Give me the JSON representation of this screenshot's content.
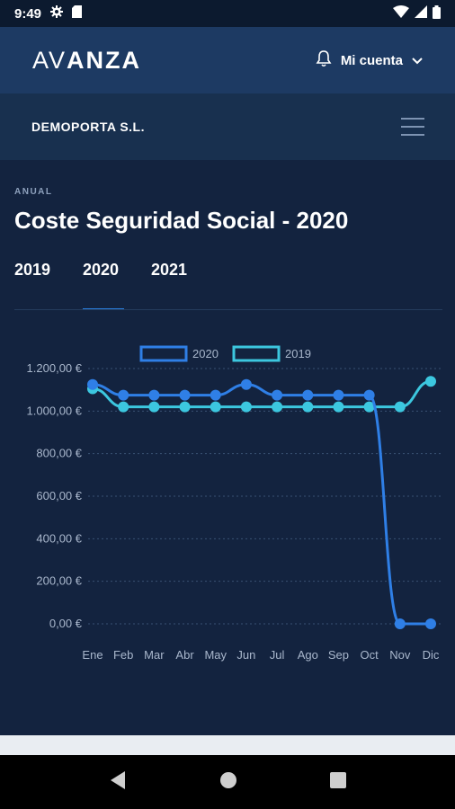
{
  "status": {
    "time": "9:49"
  },
  "header": {
    "logo_light": "AV",
    "logo_bold": "ANZA",
    "account_label": "Mi cuenta"
  },
  "company": {
    "name": "DEMOPORTA S.L."
  },
  "page": {
    "overline": "ANUAL",
    "title": "Coste Seguridad Social - 2020",
    "tabs": [
      {
        "label": "2019",
        "active": false
      },
      {
        "label": "2020",
        "active": true
      },
      {
        "label": "2021",
        "active": false
      }
    ]
  },
  "colors": {
    "series_2020": "#2f7fe6",
    "series_2019": "#3cc7df"
  },
  "chart_data": {
    "type": "line",
    "categories": [
      "Ene",
      "Feb",
      "Mar",
      "Abr",
      "May",
      "Jun",
      "Jul",
      "Ago",
      "Sep",
      "Oct",
      "Nov",
      "Dic"
    ],
    "yticks": [
      "0,00 €",
      "200,00 €",
      "400,00 €",
      "600,00 €",
      "800,00 €",
      "1.000,00 €",
      "1.200,00 €"
    ],
    "ylim": [
      0,
      1200
    ],
    "grid": true,
    "legend_position": "top-center",
    "series": [
      {
        "name": "2020",
        "values": [
          1125,
          1075,
          1075,
          1075,
          1075,
          1125,
          1075,
          1075,
          1075,
          1075,
          0,
          0
        ]
      },
      {
        "name": "2019",
        "values": [
          1105,
          1020,
          1020,
          1020,
          1020,
          1020,
          1020,
          1020,
          1020,
          1020,
          1020,
          1140
        ]
      }
    ]
  }
}
